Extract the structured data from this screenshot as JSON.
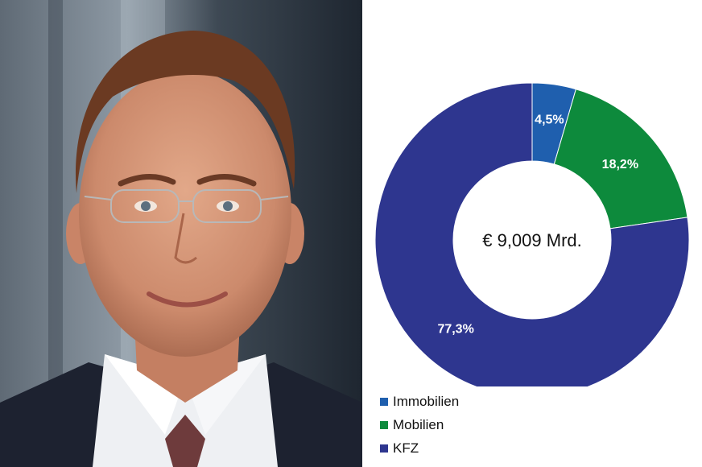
{
  "colors": {
    "immobilien": "#1f5fae",
    "mobilien": "#0d8a3c",
    "kfz": "#2e368f",
    "hole": "#ffffff"
  },
  "chart_data": {
    "type": "donut",
    "center_label": "€ 9,009 Mrd.",
    "slices": [
      {
        "name": "Immobilien",
        "value": 4.5,
        "label": "4,5%",
        "color": "#1f5fae"
      },
      {
        "name": "Mobilien",
        "value": 18.2,
        "label": "18,2%",
        "color": "#0d8a3c"
      },
      {
        "name": "KFZ",
        "value": 77.3,
        "label": "77,3%",
        "color": "#2e368f"
      }
    ],
    "legend_position": "bottom-left"
  }
}
